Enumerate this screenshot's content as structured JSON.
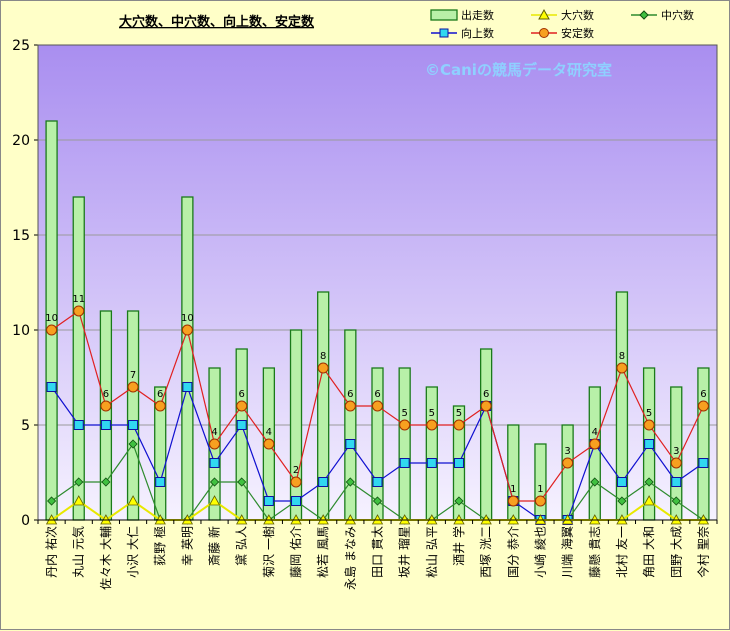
{
  "chart_data": {
    "type": "bar",
    "title": "大穴数、中穴数、向上数、安定数",
    "watermark": "©Caniの競馬データ研究室",
    "ylim": [
      0,
      25
    ],
    "yticks": [
      0,
      5,
      10,
      15,
      20,
      25
    ],
    "legend_position": "top-right",
    "categories": [
      "丹内 祐次",
      "丸山 元気",
      "佐々木 大輔",
      "小沢 大仁",
      "荻野 極",
      "幸 英明",
      "斎藤 新",
      "黛 弘人",
      "菊沢 一樹",
      "藤岡 佑介",
      "松若 風馬",
      "永島 まなみ",
      "田口 貫太",
      "坂井 瑠星",
      "松山 弘平",
      "酒井 学",
      "西塚 洸二",
      "国分 恭介",
      "小崎 綾也",
      "川端 海翼",
      "藤懸 貴志",
      "北村 友一",
      "角田 大和",
      "団野 大成",
      "今村 聖奈"
    ],
    "series": [
      {
        "name": "出走数",
        "kind": "bar",
        "color": "#b8f0a8",
        "values": [
          21,
          17,
          11,
          11,
          7,
          17,
          8,
          9,
          8,
          10,
          12,
          10,
          8,
          8,
          7,
          6,
          9,
          5,
          4,
          5,
          7,
          12,
          8,
          7,
          8
        ]
      },
      {
        "name": "大穴数",
        "kind": "line",
        "color": "#e8e800",
        "values": [
          0,
          1,
          0,
          1,
          0,
          0,
          1,
          0,
          0,
          0,
          0,
          0,
          0,
          0,
          0,
          0,
          0,
          0,
          0,
          0,
          0,
          0,
          1,
          0,
          0
        ]
      },
      {
        "name": "中穴数",
        "kind": "line",
        "color": "#2e8b2e",
        "values": [
          1,
          2,
          2,
          4,
          0,
          0,
          2,
          2,
          0,
          1,
          0,
          2,
          1,
          0,
          0,
          1,
          0,
          0,
          0,
          0,
          2,
          1,
          2,
          1,
          0
        ]
      },
      {
        "name": "向上数",
        "kind": "line",
        "color": "#1010d0",
        "values": [
          7,
          5,
          5,
          5,
          2,
          7,
          3,
          5,
          1,
          1,
          2,
          4,
          2,
          3,
          3,
          3,
          6,
          1,
          0,
          0,
          4,
          2,
          4,
          2,
          3
        ]
      },
      {
        "name": "安定数",
        "kind": "line",
        "color": "#e02020",
        "values": [
          10,
          11,
          6,
          7,
          6,
          10,
          4,
          6,
          4,
          2,
          8,
          6,
          6,
          5,
          5,
          5,
          6,
          1,
          1,
          3,
          4,
          8,
          5,
          3,
          6
        ]
      }
    ]
  },
  "colors": {
    "plot_top": "#a98ef0",
    "plot_bottom": "#f6f2ff",
    "grid": "#9a9a9a",
    "bar_fill": "#b8f0a8",
    "bar_stroke": "#1a7a1a",
    "marker_orange": "#f7a020",
    "marker_cyan": "#30d8f0"
  }
}
